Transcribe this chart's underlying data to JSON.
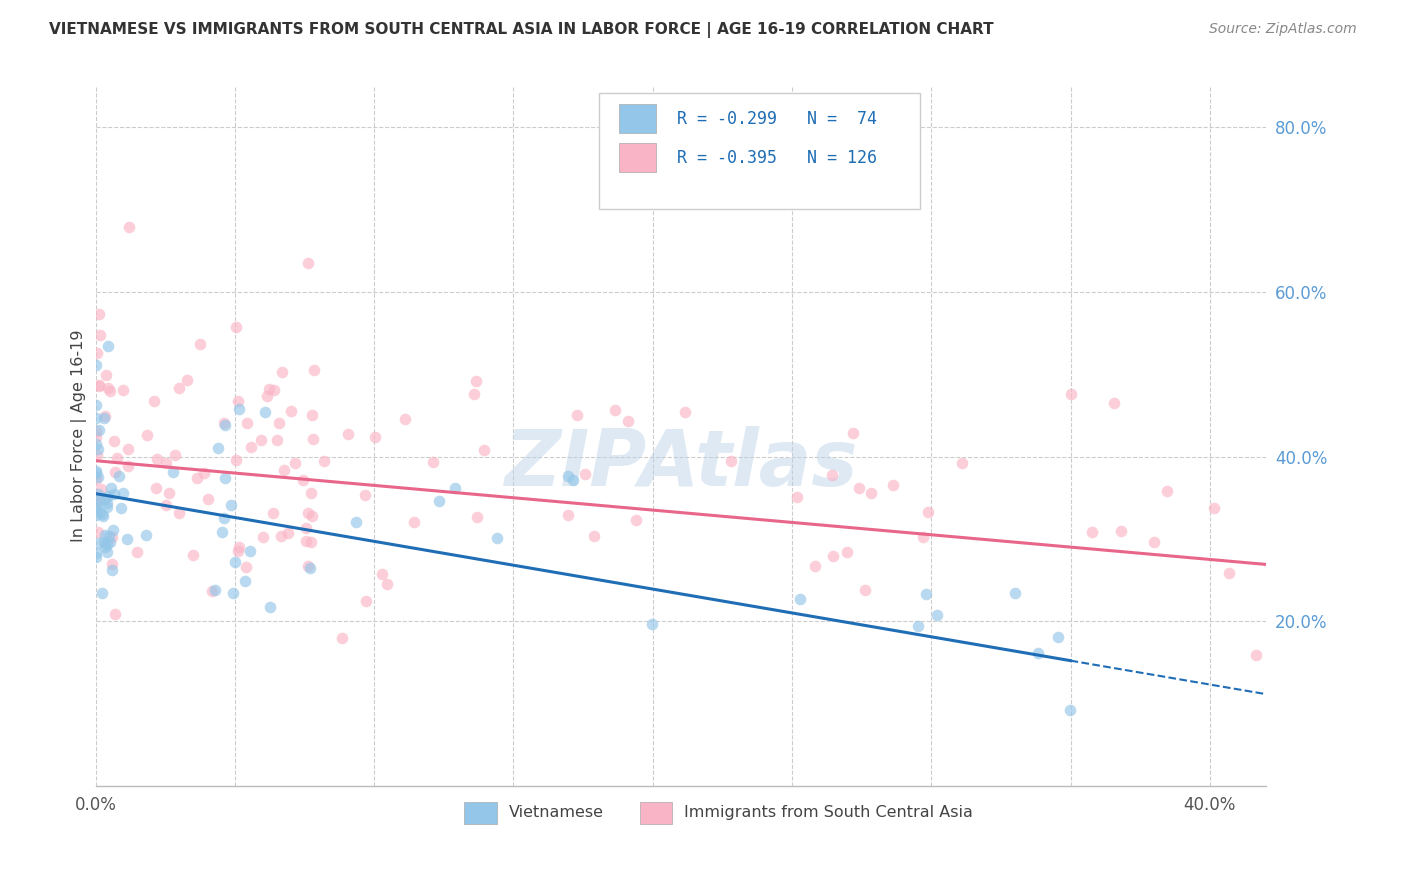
{
  "title": "VIETNAMESE VS IMMIGRANTS FROM SOUTH CENTRAL ASIA IN LABOR FORCE | AGE 16-19 CORRELATION CHART",
  "source": "Source: ZipAtlas.com",
  "ylabel": "In Labor Force | Age 16-19",
  "watermark": "ZIPAtlas",
  "xlim": [
    0.0,
    0.42
  ],
  "ylim": [
    0.0,
    0.85
  ],
  "x_ticks": [
    0.0,
    0.05,
    0.1,
    0.15,
    0.2,
    0.25,
    0.3,
    0.35,
    0.4
  ],
  "y_ticks_right": [
    0.2,
    0.4,
    0.6,
    0.8
  ],
  "y_tick_labels_right": [
    "20.0%",
    "40.0%",
    "60.0%",
    "80.0%"
  ],
  "blue_color": "#93c6e8",
  "pink_color": "#f9b4c6",
  "blue_line_color": "#1f6db5",
  "pink_line_color": "#e8668a",
  "blue_R": -0.299,
  "blue_N": 74,
  "pink_R": -0.395,
  "pink_N": 126,
  "blue_intercept": 0.355,
  "blue_slope": -0.58,
  "blue_line_end": 0.35,
  "pink_intercept": 0.395,
  "pink_slope": -0.3,
  "pink_line_end": 0.42,
  "legend_label_blue": "Vietnamese",
  "legend_label_pink": "Immigrants from South Central Asia",
  "background_color": "#ffffff",
  "grid_color": "#cccccc",
  "title_color": "#333333",
  "source_color": "#888888",
  "right_label_color": "#5b9bd5",
  "seed": 99
}
